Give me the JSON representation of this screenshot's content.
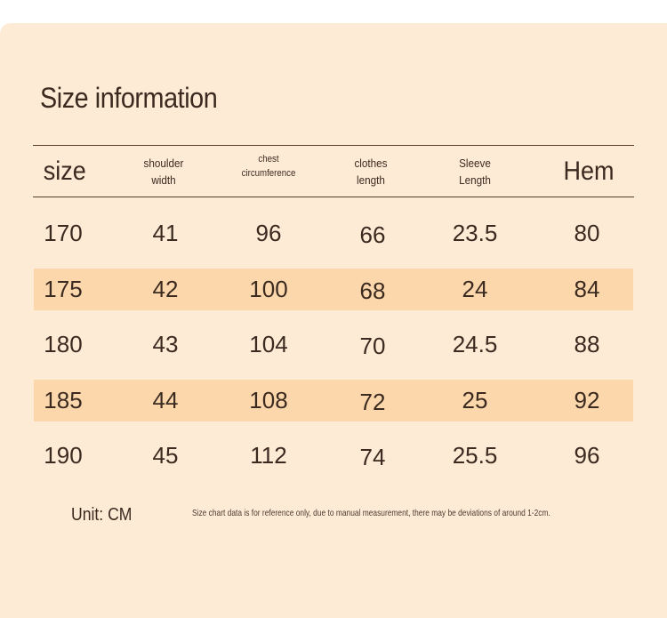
{
  "title": "Size information",
  "headers": [
    "size",
    "shoulder\nwidth",
    "chest\ncircumference",
    "clothes\nlength",
    "Sleeve\nLength",
    "Hem"
  ],
  "rows": [
    [
      "170",
      "41",
      "96",
      "66",
      "23.5",
      "80"
    ],
    [
      "175",
      "42",
      "100",
      "68",
      "24",
      "84"
    ],
    [
      "180",
      "43",
      "104",
      "70",
      "24.5",
      "88"
    ],
    [
      "185",
      "44",
      "108",
      "72",
      "25",
      "92"
    ],
    [
      "190",
      "45",
      "112",
      "74",
      "25.5",
      "96"
    ]
  ],
  "unit": "Unit: CM",
  "note": "Size chart data is for reference only, due to manual measurement, there may be deviations of around 1-2cm.",
  "colors": {
    "background": "#feebd5",
    "stripe": "#fdd7ac",
    "text": "#3a2a20"
  }
}
